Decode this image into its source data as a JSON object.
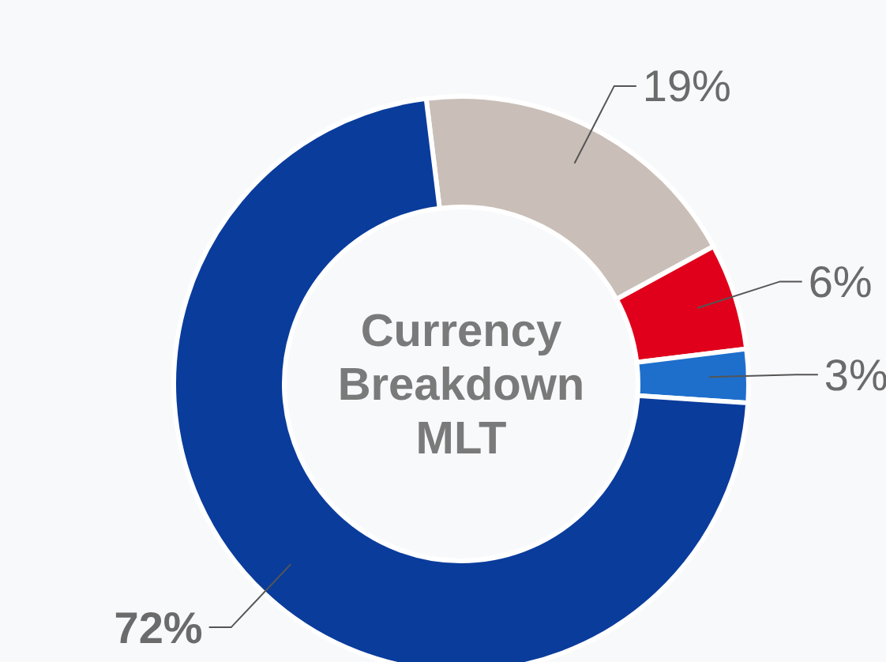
{
  "chart_data": {
    "type": "donut",
    "title": "Currency Breakdown MLT",
    "categories": [
      null,
      null,
      null,
      null
    ],
    "values": [
      19,
      6,
      3,
      72
    ],
    "colors": [
      "#c9bfb8",
      "#e0001b",
      "#1e6fcc",
      "#0a3c9c"
    ],
    "value_labels": [
      "19%",
      "6%",
      "3%",
      "72%"
    ]
  }
}
